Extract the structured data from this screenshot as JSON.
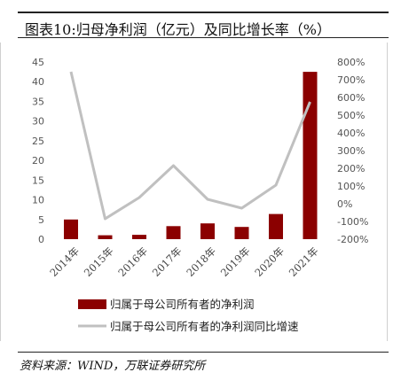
{
  "title": "图表10:归母净利润（亿元）及同比增长率（%）",
  "source": "资料来源：WIND，万联证券研究所",
  "colors": {
    "bar": "#8b0000",
    "line": "#c0c0c0"
  },
  "chart_data": {
    "type": "bar",
    "categories": [
      "2014年",
      "2015年",
      "2016年",
      "2017年",
      "2018年",
      "2019年",
      "2020年",
      "2021年"
    ],
    "series": [
      {
        "name": "归属于母公司所有者的净利润",
        "type": "bar",
        "axis": "left",
        "values": [
          5.0,
          1.0,
          1.1,
          3.3,
          4.0,
          3.1,
          6.4,
          42.5
        ]
      },
      {
        "name": "归属于母公司所有者的净利润同比增速",
        "type": "line",
        "axis": "right",
        "values": [
          745,
          -85,
          35,
          215,
          25,
          -25,
          105,
          575
        ]
      }
    ],
    "left_axis": {
      "ylim": [
        0,
        45
      ],
      "ticks": [
        "0",
        "5",
        "10",
        "15",
        "20",
        "25",
        "30",
        "35",
        "40",
        "45"
      ]
    },
    "right_axis": {
      "ylim": [
        -200,
        800
      ],
      "ticks": [
        "-200%",
        "-100%",
        "0%",
        "100%",
        "200%",
        "300%",
        "400%",
        "500%",
        "600%",
        "700%",
        "800%"
      ]
    },
    "grid": false,
    "legend": "bottom"
  }
}
